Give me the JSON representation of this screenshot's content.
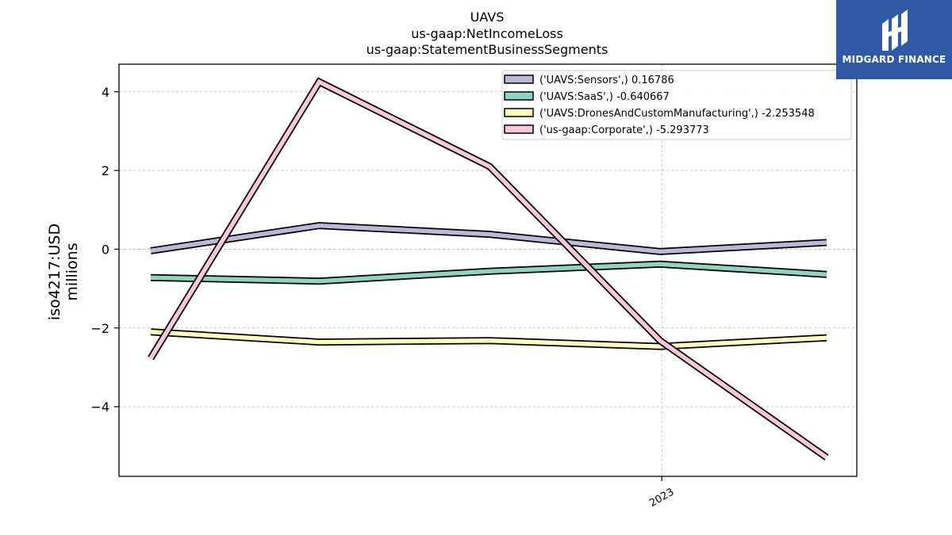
{
  "chart_data": {
    "type": "line",
    "title_lines": [
      "UAVS",
      "us-gaap:NetIncomeLoss",
      "us-gaap:StatementBusinessSegments"
    ],
    "ylabel_lines": [
      "iso4217:USD",
      "millions"
    ],
    "xlabel": "",
    "x": [
      "2022-03-31",
      "2022-06-30",
      "2022-09-30",
      "2022-12-31",
      "2023-03-31"
    ],
    "x_tick_labels": [
      "2023"
    ],
    "x_tick_values": [
      "2023-01-01"
    ],
    "yticks": [
      4,
      2,
      0,
      -2,
      -4
    ],
    "ytick_labels": [
      "4",
      "2",
      "0",
      "−2",
      "−4"
    ],
    "ylim": [
      -5.77,
      4.7
    ],
    "grid": true,
    "legend_position": "top-right",
    "series": [
      {
        "name": "('UAVS:Sensors',) 0.16786",
        "color": "#bcb8d8",
        "values": [
          -0.04,
          0.6,
          0.38,
          -0.06,
          0.17
        ]
      },
      {
        "name": "('UAVS:SaaS',) -0.640667",
        "color": "#8fd3c3",
        "values": [
          -0.72,
          -0.81,
          -0.56,
          -0.38,
          -0.64
        ]
      },
      {
        "name": "('UAVS:DronesAndCustomManufacturing',) -2.253548",
        "color": "#fefdbc",
        "values": [
          -2.1,
          -2.36,
          -2.32,
          -2.47,
          -2.25
        ]
      },
      {
        "name": "('us-gaap:Corporate',) -5.293773",
        "color": "#f8c7dc",
        "values": [
          -2.77,
          4.25,
          2.1,
          -2.32,
          -5.29
        ]
      }
    ]
  },
  "logo": {
    "text": "MIDGARD FINANCE",
    "icon": "midgard-logo-icon"
  }
}
